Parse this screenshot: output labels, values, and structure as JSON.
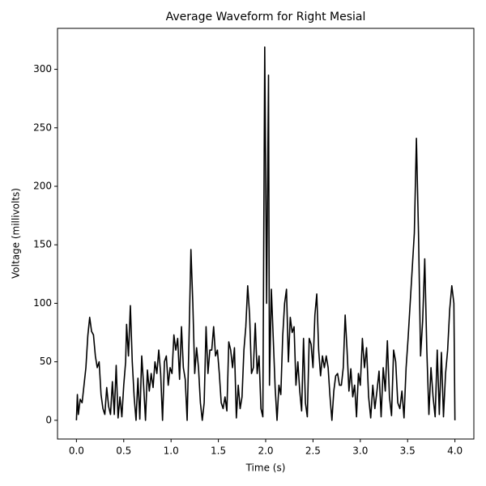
{
  "chart_data": {
    "type": "line",
    "title": "Average Waveform for Right Mesial",
    "xlabel": "Time (s)",
    "ylabel": "Voltage (millivolts)",
    "color": "#000000",
    "xlim": [
      -0.2,
      4.2
    ],
    "ylim": [
      -16,
      335
    ],
    "xticks": [
      {
        "value": 0,
        "label": "0.0"
      },
      0.5,
      {
        "value": 1,
        "label": "1.0"
      },
      1.5,
      {
        "value": 2,
        "label": "2.0"
      },
      2.5,
      {
        "value": 3,
        "label": "3.0"
      },
      3.5,
      {
        "value": 4,
        "label": "4.0"
      }
    ],
    "yticks": [
      0,
      50,
      100,
      150,
      200,
      250,
      300
    ],
    "x": [
      0,
      0.01,
      0.02,
      0.04,
      0.06,
      0.08,
      0.1,
      0.12,
      0.14,
      0.16,
      0.18,
      0.2,
      0.22,
      0.24,
      0.26,
      0.28,
      0.3,
      0.32,
      0.34,
      0.36,
      0.38,
      0.4,
      0.42,
      0.44,
      0.46,
      0.48,
      0.5,
      0.52,
      0.53,
      0.55,
      0.57,
      0.59,
      0.61,
      0.63,
      0.65,
      0.67,
      0.69,
      0.71,
      0.73,
      0.75,
      0.77,
      0.79,
      0.81,
      0.83,
      0.85,
      0.87,
      0.89,
      0.91,
      0.93,
      0.95,
      0.97,
      0.99,
      1.01,
      1.03,
      1.05,
      1.07,
      1.09,
      1.11,
      1.13,
      1.15,
      1.17,
      1.19,
      1.21,
      1.23,
      1.25,
      1.27,
      1.29,
      1.31,
      1.33,
      1.35,
      1.37,
      1.39,
      1.41,
      1.43,
      1.45,
      1.47,
      1.49,
      1.51,
      1.53,
      1.55,
      1.57,
      1.59,
      1.61,
      1.63,
      1.65,
      1.67,
      1.69,
      1.71,
      1.73,
      1.75,
      1.77,
      1.79,
      1.81,
      1.83,
      1.85,
      1.87,
      1.89,
      1.91,
      1.93,
      1.95,
      1.97,
      1.99,
      2.01,
      2.03,
      2.04,
      2.06,
      2.08,
      2.1,
      2.12,
      2.14,
      2.16,
      2.18,
      2.2,
      2.22,
      2.24,
      2.26,
      2.28,
      2.3,
      2.32,
      2.34,
      2.36,
      2.38,
      2.4,
      2.42,
      2.44,
      2.46,
      2.48,
      2.5,
      2.52,
      2.54,
      2.56,
      2.58,
      2.6,
      2.62,
      2.64,
      2.66,
      2.68,
      2.7,
      2.72,
      2.74,
      2.76,
      2.78,
      2.8,
      2.82,
      2.84,
      2.86,
      2.88,
      2.9,
      2.92,
      2.94,
      2.96,
      2.98,
      3.0,
      3.022,
      3.044,
      3.066,
      3.088,
      3.11,
      3.132,
      3.154,
      3.176,
      3.198,
      3.22,
      3.242,
      3.264,
      3.286,
      3.308,
      3.33,
      3.352,
      3.374,
      3.396,
      3.418,
      3.44,
      3.462,
      3.484,
      3.505,
      3.527,
      3.549,
      3.571,
      3.593,
      3.615,
      3.637,
      3.659,
      3.681,
      3.703,
      3.725,
      3.747,
      3.769,
      3.791,
      3.813,
      3.835,
      3.857,
      3.879,
      3.901,
      3.923,
      3.945,
      3.967,
      3.989,
      4.0
    ],
    "values": [
      0,
      22,
      5,
      18,
      15,
      30,
      45,
      72,
      88,
      76,
      73,
      55,
      45,
      50,
      22,
      10,
      5,
      28,
      12,
      5,
      33,
      5,
      47,
      2,
      20,
      3,
      30,
      50,
      82,
      55,
      98,
      50,
      20,
      0,
      36,
      1,
      55,
      30,
      0,
      43,
      25,
      40,
      28,
      50,
      40,
      60,
      40,
      0,
      50,
      55,
      30,
      45,
      40,
      73,
      60,
      70,
      35,
      80,
      45,
      35,
      0,
      70,
      146,
      100,
      40,
      62,
      45,
      15,
      0,
      15,
      80,
      40,
      60,
      60,
      80,
      55,
      60,
      40,
      15,
      10,
      20,
      8,
      67,
      60,
      45,
      62,
      2,
      30,
      10,
      20,
      60,
      80,
      115,
      90,
      40,
      45,
      83,
      40,
      55,
      10,
      3,
      319,
      100,
      295,
      30,
      112,
      70,
      28,
      0,
      30,
      22,
      72,
      100,
      112,
      50,
      88,
      75,
      80,
      30,
      50,
      25,
      8,
      70,
      15,
      3,
      70,
      65,
      45,
      90,
      108,
      60,
      38,
      55,
      45,
      55,
      45,
      20,
      0,
      25,
      38,
      40,
      30,
      30,
      45,
      90,
      60,
      25,
      44,
      20,
      30,
      3,
      40,
      30,
      70,
      45,
      62,
      20,
      2,
      30,
      10,
      25,
      42,
      3,
      45,
      25,
      68,
      20,
      4,
      60,
      50,
      15,
      10,
      25,
      2,
      45,
      70,
      100,
      130,
      160,
      241,
      160,
      55,
      85,
      138,
      60,
      5,
      45,
      20,
      3,
      60,
      5,
      58,
      3,
      40,
      60,
      95,
      115,
      100,
      0
    ]
  }
}
